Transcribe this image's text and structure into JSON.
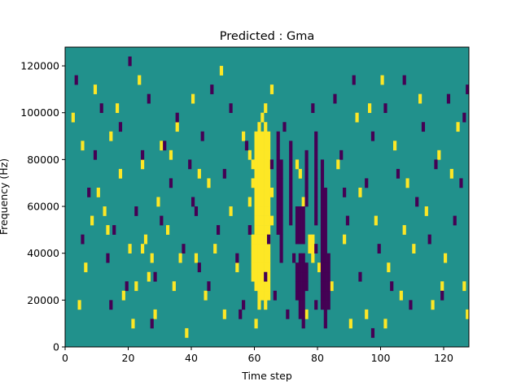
{
  "chart_data": {
    "type": "heatmap",
    "title": "Predicted : Gma",
    "xlabel": "Time step",
    "ylabel": "Frequency (Hz)",
    "xlim": [
      0,
      128
    ],
    "ylim": [
      0,
      128000
    ],
    "x_ticks": [
      0,
      20,
      40,
      60,
      80,
      100,
      120
    ],
    "x_tick_labels": [
      "0",
      "20",
      "40",
      "60",
      "80",
      "100",
      "120"
    ],
    "y_ticks": [
      0,
      20000,
      40000,
      60000,
      80000,
      100000,
      120000
    ],
    "y_tick_labels": [
      "0",
      "20000",
      "40000",
      "60000",
      "80000",
      "100000",
      "120000"
    ],
    "grid": false,
    "colors": {
      "background": "#21918c",
      "high": "#fde725",
      "low": "#440154"
    },
    "high_cells": [
      [
        60,
        2
      ],
      [
        60,
        6
      ],
      [
        60,
        7
      ],
      [
        60,
        8
      ],
      [
        60,
        9
      ],
      [
        60,
        10
      ],
      [
        60,
        11
      ],
      [
        60,
        12
      ],
      [
        60,
        13
      ],
      [
        60,
        14
      ],
      [
        60,
        15
      ],
      [
        60,
        16
      ],
      [
        60,
        17
      ],
      [
        60,
        18
      ],
      [
        60,
        19
      ],
      [
        60,
        20
      ],
      [
        60,
        21
      ],
      [
        60,
        22
      ],
      [
        61,
        4
      ],
      [
        61,
        5
      ],
      [
        61,
        6
      ],
      [
        61,
        7
      ],
      [
        61,
        8
      ],
      [
        61,
        9
      ],
      [
        61,
        10
      ],
      [
        61,
        11
      ],
      [
        61,
        12
      ],
      [
        61,
        13
      ],
      [
        61,
        14
      ],
      [
        61,
        15
      ],
      [
        61,
        16
      ],
      [
        61,
        17
      ],
      [
        61,
        18
      ],
      [
        61,
        19
      ],
      [
        61,
        20
      ],
      [
        61,
        21
      ],
      [
        61,
        22
      ],
      [
        61,
        23
      ],
      [
        62,
        5
      ],
      [
        62,
        6
      ],
      [
        62,
        7
      ],
      [
        62,
        8
      ],
      [
        62,
        9
      ],
      [
        62,
        10
      ],
      [
        62,
        11
      ],
      [
        62,
        12
      ],
      [
        62,
        13
      ],
      [
        62,
        14
      ],
      [
        62,
        15
      ],
      [
        62,
        16
      ],
      [
        62,
        17
      ],
      [
        62,
        18
      ],
      [
        62,
        19
      ],
      [
        62,
        20
      ],
      [
        62,
        21
      ],
      [
        62,
        22
      ],
      [
        62,
        24
      ],
      [
        63,
        4
      ],
      [
        63,
        5
      ],
      [
        63,
        6
      ],
      [
        63,
        7
      ],
      [
        63,
        8
      ],
      [
        63,
        9
      ],
      [
        63,
        10
      ],
      [
        63,
        11
      ],
      [
        63,
        12
      ],
      [
        63,
        13
      ],
      [
        63,
        14
      ],
      [
        63,
        15
      ],
      [
        63,
        16
      ],
      [
        63,
        17
      ],
      [
        63,
        18
      ],
      [
        63,
        19
      ],
      [
        63,
        20
      ],
      [
        63,
        21
      ],
      [
        63,
        22
      ],
      [
        63,
        23
      ],
      [
        63,
        25
      ],
      [
        64,
        5
      ],
      [
        64,
        6
      ],
      [
        64,
        7
      ],
      [
        64,
        8
      ],
      [
        64,
        9
      ],
      [
        64,
        10
      ],
      [
        64,
        11
      ],
      [
        64,
        12
      ],
      [
        64,
        13
      ],
      [
        64,
        14
      ],
      [
        64,
        15
      ],
      [
        64,
        16
      ],
      [
        64,
        17
      ],
      [
        64,
        18
      ],
      [
        64,
        19
      ],
      [
        64,
        20
      ],
      [
        64,
        21
      ],
      [
        64,
        22
      ],
      [
        59,
        7
      ],
      [
        59,
        8
      ],
      [
        59,
        9
      ],
      [
        59,
        10
      ],
      [
        59,
        11
      ],
      [
        59,
        17
      ],
      [
        59,
        19
      ],
      [
        58,
        15
      ],
      [
        58,
        20
      ],
      [
        65,
        13
      ],
      [
        65,
        16
      ],
      [
        65,
        27
      ],
      [
        77,
        10
      ],
      [
        77,
        11
      ],
      [
        78,
        9
      ],
      [
        78,
        10
      ],
      [
        78,
        11
      ],
      [
        73,
        19
      ],
      [
        74,
        18
      ],
      [
        75,
        15
      ],
      [
        80,
        8
      ],
      [
        76,
        3
      ],
      [
        2,
        24
      ],
      [
        4,
        4
      ],
      [
        6,
        8
      ],
      [
        8,
        13
      ],
      [
        10,
        16
      ],
      [
        12,
        14
      ],
      [
        13,
        12
      ],
      [
        14,
        22
      ],
      [
        16,
        25
      ],
      [
        18,
        5
      ],
      [
        20,
        10
      ],
      [
        21,
        2
      ],
      [
        22,
        6
      ],
      [
        23,
        28
      ],
      [
        24,
        19
      ],
      [
        25,
        11
      ],
      [
        26,
        7
      ],
      [
        27,
        9
      ],
      [
        28,
        3
      ],
      [
        29,
        15
      ],
      [
        30,
        21
      ],
      [
        32,
        12
      ],
      [
        34,
        6
      ],
      [
        35,
        23
      ],
      [
        36,
        9
      ],
      [
        38,
        1
      ],
      [
        40,
        26
      ],
      [
        42,
        18
      ],
      [
        44,
        5
      ],
      [
        47,
        10
      ],
      [
        49,
        29
      ],
      [
        50,
        3
      ],
      [
        52,
        14
      ],
      [
        54,
        8
      ],
      [
        56,
        22
      ],
      [
        84,
        6
      ],
      [
        86,
        19
      ],
      [
        88,
        11
      ],
      [
        90,
        2
      ],
      [
        92,
        24
      ],
      [
        93,
        16
      ],
      [
        95,
        3
      ],
      [
        98,
        13
      ],
      [
        100,
        28
      ],
      [
        102,
        8
      ],
      [
        104,
        21
      ],
      [
        106,
        5
      ],
      [
        108,
        17
      ],
      [
        110,
        10
      ],
      [
        112,
        26
      ],
      [
        114,
        14
      ],
      [
        116,
        4
      ],
      [
        118,
        20
      ],
      [
        120,
        9
      ],
      [
        122,
        18
      ],
      [
        124,
        23
      ],
      [
        126,
        6
      ],
      [
        127,
        3
      ],
      [
        107,
        12
      ],
      [
        96,
        25
      ],
      [
        33,
        20
      ],
      [
        17,
        18
      ],
      [
        9,
        27
      ],
      [
        5,
        21
      ],
      [
        45,
        17
      ],
      [
        101,
        2
      ],
      [
        119,
        6
      ],
      [
        24,
        10
      ],
      [
        41,
        9
      ]
    ],
    "low_cells": [
      [
        67,
        12
      ],
      [
        67,
        13
      ],
      [
        67,
        14
      ],
      [
        67,
        15
      ],
      [
        67,
        16
      ],
      [
        67,
        17
      ],
      [
        67,
        18
      ],
      [
        67,
        19
      ],
      [
        67,
        20
      ],
      [
        67,
        21
      ],
      [
        67,
        22
      ],
      [
        68,
        9
      ],
      [
        68,
        10
      ],
      [
        68,
        11
      ],
      [
        68,
        12
      ],
      [
        68,
        13
      ],
      [
        68,
        14
      ],
      [
        68,
        15
      ],
      [
        68,
        16
      ],
      [
        68,
        17
      ],
      [
        68,
        18
      ],
      [
        68,
        19
      ],
      [
        71,
        13
      ],
      [
        71,
        14
      ],
      [
        71,
        15
      ],
      [
        71,
        16
      ],
      [
        71,
        17
      ],
      [
        71,
        18
      ],
      [
        71,
        19
      ],
      [
        71,
        20
      ],
      [
        71,
        21
      ],
      [
        73,
        5
      ],
      [
        73,
        6
      ],
      [
        73,
        7
      ],
      [
        73,
        8
      ],
      [
        73,
        11
      ],
      [
        73,
        12
      ],
      [
        73,
        13
      ],
      [
        73,
        14
      ],
      [
        74,
        3
      ],
      [
        74,
        4
      ],
      [
        74,
        5
      ],
      [
        74,
        6
      ],
      [
        74,
        7
      ],
      [
        74,
        8
      ],
      [
        74,
        9
      ],
      [
        74,
        11
      ],
      [
        74,
        12
      ],
      [
        74,
        13
      ],
      [
        74,
        14
      ],
      [
        75,
        2
      ],
      [
        75,
        3
      ],
      [
        75,
        4
      ],
      [
        75,
        5
      ],
      [
        75,
        6
      ],
      [
        75,
        7
      ],
      [
        75,
        8
      ],
      [
        75,
        9
      ],
      [
        75,
        11
      ],
      [
        75,
        12
      ],
      [
        75,
        13
      ],
      [
        75,
        14
      ],
      [
        76,
        6
      ],
      [
        76,
        7
      ],
      [
        76,
        8
      ],
      [
        76,
        15
      ],
      [
        76,
        16
      ],
      [
        76,
        17
      ],
      [
        76,
        18
      ],
      [
        76,
        19
      ],
      [
        76,
        20
      ],
      [
        79,
        4
      ],
      [
        79,
        10
      ],
      [
        79,
        13
      ],
      [
        79,
        14
      ],
      [
        79,
        15
      ],
      [
        79,
        16
      ],
      [
        79,
        17
      ],
      [
        79,
        18
      ],
      [
        79,
        19
      ],
      [
        79,
        20
      ],
      [
        79,
        21
      ],
      [
        79,
        22
      ],
      [
        81,
        4
      ],
      [
        81,
        5
      ],
      [
        81,
        6
      ],
      [
        81,
        7
      ],
      [
        81,
        8
      ],
      [
        81,
        9
      ],
      [
        81,
        10
      ],
      [
        81,
        11
      ],
      [
        81,
        12
      ],
      [
        81,
        13
      ],
      [
        81,
        14
      ],
      [
        81,
        15
      ],
      [
        81,
        16
      ],
      [
        81,
        17
      ],
      [
        81,
        18
      ],
      [
        81,
        19
      ],
      [
        82,
        2
      ],
      [
        82,
        3
      ],
      [
        82,
        4
      ],
      [
        82,
        5
      ],
      [
        82,
        6
      ],
      [
        82,
        7
      ],
      [
        82,
        8
      ],
      [
        82,
        9
      ],
      [
        82,
        10
      ],
      [
        82,
        11
      ],
      [
        82,
        12
      ],
      [
        82,
        13
      ],
      [
        82,
        14
      ],
      [
        82,
        15
      ],
      [
        82,
        16
      ],
      [
        83,
        4
      ],
      [
        83,
        5
      ],
      [
        83,
        6
      ],
      [
        83,
        7
      ],
      [
        83,
        8
      ],
      [
        83,
        9
      ],
      [
        63,
        7
      ],
      [
        64,
        11
      ],
      [
        65,
        19
      ],
      [
        66,
        5
      ],
      [
        69,
        23
      ],
      [
        70,
        3
      ],
      [
        72,
        9
      ],
      [
        78,
        25
      ],
      [
        3,
        28
      ],
      [
        5,
        11
      ],
      [
        7,
        16
      ],
      [
        9,
        20
      ],
      [
        11,
        25
      ],
      [
        13,
        9
      ],
      [
        15,
        12
      ],
      [
        17,
        23
      ],
      [
        19,
        6
      ],
      [
        20,
        30
      ],
      [
        22,
        14
      ],
      [
        24,
        20
      ],
      [
        26,
        26
      ],
      [
        28,
        7
      ],
      [
        30,
        13
      ],
      [
        31,
        21
      ],
      [
        33,
        17
      ],
      [
        35,
        24
      ],
      [
        37,
        10
      ],
      [
        39,
        19
      ],
      [
        40,
        15
      ],
      [
        41,
        14
      ],
      [
        43,
        22
      ],
      [
        45,
        6
      ],
      [
        46,
        27
      ],
      [
        48,
        12
      ],
      [
        50,
        18
      ],
      [
        52,
        25
      ],
      [
        54,
        9
      ],
      [
        55,
        3
      ],
      [
        57,
        21
      ],
      [
        58,
        12
      ],
      [
        85,
        26
      ],
      [
        87,
        20
      ],
      [
        89,
        13
      ],
      [
        91,
        28
      ],
      [
        93,
        7
      ],
      [
        95,
        17
      ],
      [
        97,
        22
      ],
      [
        99,
        10
      ],
      [
        101,
        25
      ],
      [
        103,
        6
      ],
      [
        105,
        18
      ],
      [
        107,
        28
      ],
      [
        109,
        4
      ],
      [
        111,
        15
      ],
      [
        113,
        23
      ],
      [
        115,
        11
      ],
      [
        117,
        19
      ],
      [
        119,
        5
      ],
      [
        121,
        26
      ],
      [
        123,
        13
      ],
      [
        125,
        17
      ],
      [
        126,
        24
      ],
      [
        127,
        27
      ],
      [
        97,
        1
      ],
      [
        88,
        16
      ],
      [
        56,
        4
      ],
      [
        42,
        8
      ],
      [
        27,
        2
      ],
      [
        14,
        4
      ]
    ]
  }
}
